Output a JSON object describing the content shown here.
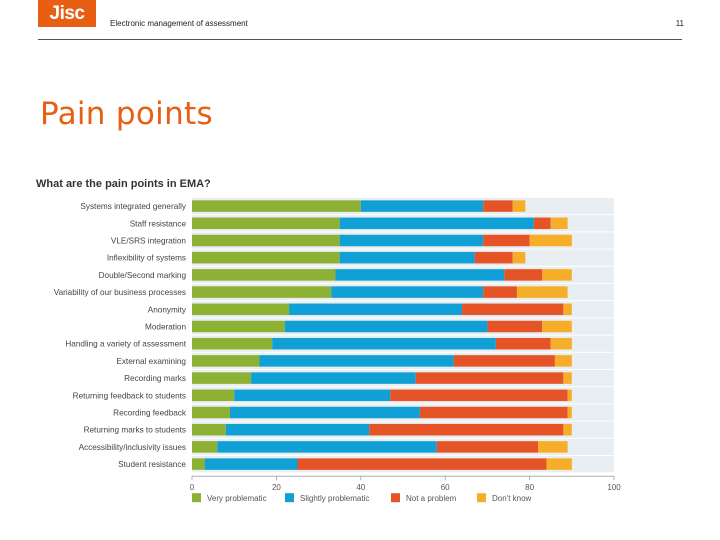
{
  "header": {
    "logo_text": "Jisc",
    "title": "Electronic management of assessment",
    "page_number": "11"
  },
  "slide": {
    "title": "Pain points"
  },
  "colors": {
    "brand": "#e85e13",
    "very_problematic": "#8cb133",
    "slightly_problematic": "#11a0d6",
    "not_a_problem": "#e55427",
    "dont_know": "#f6ae28",
    "band": "#e9eef3"
  },
  "chart_data": {
    "type": "bar",
    "orientation": "horizontal",
    "stacked": true,
    "title": "What are the pain points in EMA?",
    "xlim": [
      0,
      100
    ],
    "xticks": [
      0,
      20,
      40,
      60,
      80,
      100
    ],
    "categories": [
      "Systems integrated generally",
      "Staff resistance",
      "VLE/SRS integration",
      "Inflexibility of systems",
      "Double/Second marking",
      "Variability of our business processes",
      "Anonymity",
      "Moderation",
      "Handling a variety of assessment",
      "External examining",
      "Recording marks",
      "Returning feedback to students",
      "Recording feedback",
      "Returning marks to students",
      "Accessibility/inclusivity issues",
      "Student resistance"
    ],
    "series": [
      {
        "name": "Very problematic",
        "values": [
          40,
          35,
          35,
          35,
          34,
          33,
          23,
          22,
          19,
          16,
          14,
          10,
          9,
          8,
          6,
          3
        ]
      },
      {
        "name": "Slightly problematic",
        "values": [
          29,
          46,
          34,
          32,
          40,
          36,
          41,
          48,
          53,
          46,
          39,
          37,
          45,
          34,
          52,
          22
        ]
      },
      {
        "name": "Not a problem",
        "values": [
          7,
          4,
          11,
          9,
          9,
          8,
          24,
          13,
          13,
          24,
          35,
          42,
          35,
          46,
          24,
          59
        ]
      },
      {
        "name": "Don't know",
        "values": [
          3,
          4,
          10,
          3,
          7,
          12,
          2,
          7,
          5,
          4,
          2,
          1,
          1,
          2,
          7,
          6
        ]
      }
    ],
    "legend_position": "bottom"
  }
}
